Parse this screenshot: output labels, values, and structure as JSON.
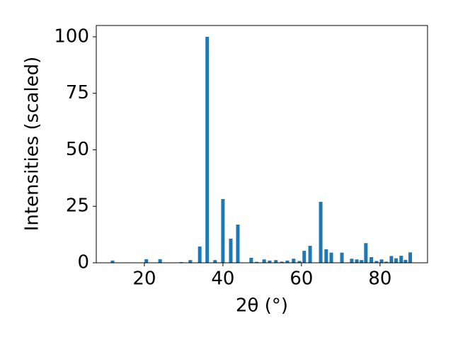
{
  "chart_data": {
    "type": "bar",
    "xlabel": "2θ (°)",
    "ylabel": "Intensities (scaled)",
    "color": "#1f77b4",
    "x": [
      11.9,
      20.5,
      24.0,
      29.4,
      31.7,
      34.1,
      36.0,
      38.0,
      40.0,
      42.0,
      43.8,
      47.2,
      48.6,
      50.5,
      51.9,
      53.5,
      55.0,
      56.4,
      58.0,
      59.5,
      60.7,
      62.2,
      64.9,
      66.3,
      67.6,
      70.3,
      72.8,
      74.1,
      75.3,
      76.4,
      77.8,
      79.1,
      80.4,
      81.6,
      82.9,
      84.1,
      85.4,
      86.5,
      87.7
    ],
    "values": [
      1.0,
      1.6,
      1.6,
      0.3,
      1.2,
      7.2,
      100,
      1.2,
      28.2,
      10.7,
      16.9,
      2.2,
      0.4,
      1.5,
      1.0,
      1.2,
      0.5,
      1.0,
      1.8,
      0.8,
      5.3,
      7.5,
      27.0,
      6.0,
      4.5,
      4.5,
      1.8,
      1.5,
      1.2,
      8.7,
      2.5,
      0.8,
      1.5,
      0.5,
      3.0,
      2.0,
      3.1,
      1.3,
      4.6
    ],
    "xlim": [
      7.75,
      92.1
    ],
    "ylim": [
      0,
      105
    ],
    "xticks": [
      20,
      40,
      60,
      80
    ],
    "yticks": [
      0,
      25,
      50,
      75,
      100
    ]
  }
}
